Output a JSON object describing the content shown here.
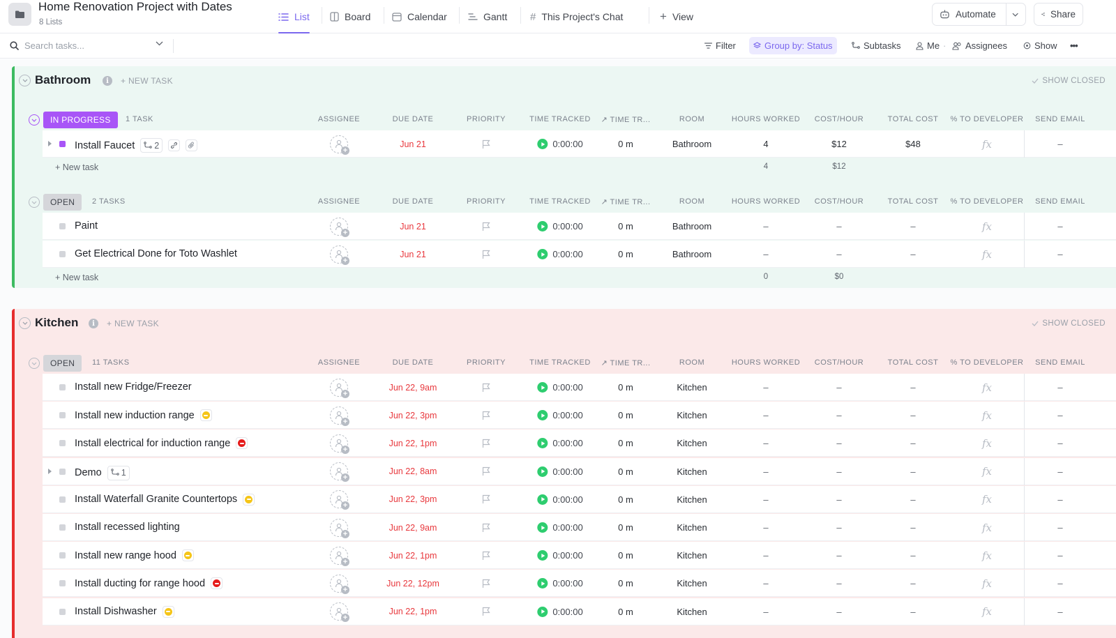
{
  "header": {
    "title": "Home Renovation Project with Dates",
    "subtitle": "8 Lists",
    "tabs": [
      {
        "label": "List",
        "icon": "list-icon",
        "active": true
      },
      {
        "label": "Board",
        "icon": "board-icon"
      },
      {
        "label": "Calendar",
        "icon": "calendar-icon"
      },
      {
        "label": "Gantt",
        "icon": "gantt-icon"
      },
      {
        "label": "This Project's Chat",
        "icon": "hash-icon"
      },
      {
        "label": "View",
        "icon": "plus-icon"
      }
    ],
    "automate_label": "Automate",
    "share_label": "Share"
  },
  "toolbar": {
    "search_placeholder": "Search tasks...",
    "filter_label": "Filter",
    "group_label": "Group by: Status",
    "subtasks_label": "Subtasks",
    "me_label": "Me",
    "assignees_label": "Assignees",
    "show_label": "Show",
    "more_label": "•••"
  },
  "columns": {
    "assignee": "ASSIGNEE",
    "due_date": "DUE DATE",
    "priority": "PRIORITY",
    "time_tracked": "TIME TRACKED",
    "time_tr": "TIME TR...",
    "room": "ROOM",
    "hours_worked": "HOURS WORKED",
    "cost_hour": "COST/HOUR",
    "total_cost": "TOTAL COST",
    "pct_developer": "% TO DEVELOPER",
    "send_email": "SEND EMAIL"
  },
  "colors": {
    "accent": "#7b68ee",
    "in_progress": "#a855f7",
    "bathroom": "#3dbb61",
    "kitchen": "#e62d2d",
    "date": "#e8383d"
  },
  "common": {
    "new_task_upper": "+ NEW TASK",
    "new_task": "+ New task",
    "show_closed": "SHOW CLOSED",
    "timer": "0:00:00",
    "time_tr_value": "0 m",
    "dash": "–",
    "info": "i"
  },
  "bathroom": {
    "title": "Bathroom",
    "groups": [
      {
        "status": "IN PROGRESS",
        "count": "1 TASK",
        "tasks": [
          {
            "name": "Install Faucet",
            "subtasks": "2",
            "due": "Jun 21",
            "room": "Bathroom",
            "hours": "4",
            "cost": "$12",
            "total": "$48"
          }
        ],
        "sum_hours": "4",
        "sum_cost": "$12"
      },
      {
        "status": "OPEN",
        "count": "2 TASKS",
        "tasks": [
          {
            "name": "Paint",
            "due": "Jun 21",
            "room": "Bathroom",
            "hours": "–",
            "cost": "–",
            "total": "–"
          },
          {
            "name": "Get Electrical Done for Toto Washlet",
            "due": "Jun 21",
            "room": "Bathroom",
            "hours": "–",
            "cost": "–",
            "total": "–"
          }
        ],
        "sum_hours": "0",
        "sum_cost": "$0"
      }
    ]
  },
  "kitchen": {
    "title": "Kitchen",
    "groups": [
      {
        "status": "OPEN",
        "count": "11 TASKS",
        "tasks": [
          {
            "name": "Install new Fridge/Freezer",
            "due": "Jun 22, 9am",
            "room": "Kitchen"
          },
          {
            "name": "Install new induction range",
            "due": "Jun 22, 3pm",
            "room": "Kitchen",
            "badge": "yellow"
          },
          {
            "name": "Install electrical for induction range",
            "due": "Jun 22, 1pm",
            "room": "Kitchen",
            "badge": "red"
          },
          {
            "name": "Demo",
            "subtasks": "1",
            "due": "Jun 22, 8am",
            "room": "Kitchen"
          },
          {
            "name": "Install Waterfall Granite Countertops",
            "due": "Jun 22, 3pm",
            "room": "Kitchen",
            "badge": "yellow"
          },
          {
            "name": "Install recessed lighting",
            "due": "Jun 22, 9am",
            "room": "Kitchen"
          },
          {
            "name": "Install new range hood",
            "due": "Jun 22, 1pm",
            "room": "Kitchen",
            "badge": "yellow"
          },
          {
            "name": "Install ducting for range hood",
            "due": "Jun 22, 12pm",
            "room": "Kitchen",
            "badge": "red"
          },
          {
            "name": "Install Dishwasher",
            "due": "Jun 22, 1pm",
            "room": "Kitchen",
            "badge": "yellow"
          }
        ]
      }
    ]
  }
}
